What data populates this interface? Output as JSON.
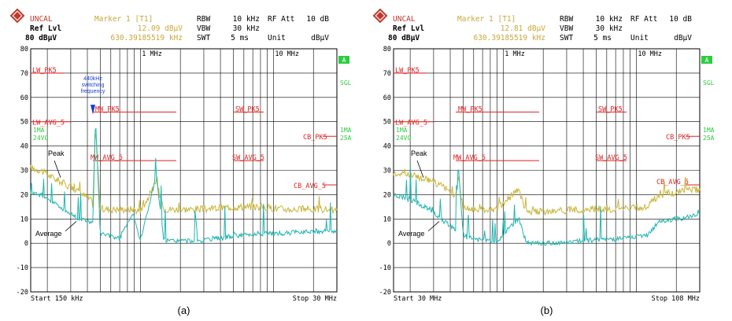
{
  "figure": {
    "panels": [
      {
        "id": "a",
        "caption": "(a)",
        "header": {
          "uncal": "UNCAL",
          "marker_title": "Marker 1 [T1]",
          "marker_value": "12.09 dBµV",
          "marker_freq": "630.39185519 kHz",
          "ref_lvl_label": "Ref Lvl",
          "ref_lvl_value": "80 dBµV",
          "rbw_label": "RBW",
          "rbw_value": "10 kHz",
          "vbw_label": "VBW",
          "vbw_value": "30 kHz",
          "swt_label": "SWT",
          "swt_value": "5 ms",
          "rf_att_label": "RF Att",
          "rf_att_value": "10 dB",
          "unit_label": "Unit",
          "unit_value": "dBµV"
        },
        "footer": {
          "start": "Start 150 kHz",
          "stop": "Stop 30 MHz"
        },
        "side_labels": {
          "a_badge": "A",
          "sgl": "SGL",
          "ma1": "1MA",
          "sub": "25A"
        },
        "left_labels": {
          "ma1": "1MA",
          "avg": "24VG"
        },
        "decade_labels": [
          "1 MHz",
          "10 MHz"
        ],
        "annotations": {
          "peak": "Peak",
          "average": "Average",
          "switching": [
            "440kHz",
            "switching",
            "frequency"
          ]
        },
        "limit_labels": [
          "LW_PK5",
          "LW_AVG_5",
          "MW_PK5",
          "MW_AVG_5",
          "SW_PK5",
          "SW_AVG_5",
          "CB_PK5",
          "CB_AVG_5"
        ]
      },
      {
        "id": "b",
        "caption": "(b)",
        "header": {
          "uncal": "UNCAL",
          "marker_title": "Marker 1 [T1]",
          "marker_value": "12.81 dBµV",
          "marker_freq": "630.39185519 kHz",
          "ref_lvl_label": "Ref Lvl",
          "ref_lvl_value": "80 dBµV",
          "rbw_label": "RBW",
          "rbw_value": "10 kHz",
          "vbw_label": "VBW",
          "vbw_value": "30 kHz",
          "swt_label": "SWT",
          "swt_value": "5 ms",
          "rf_att_label": "RF Att",
          "rf_att_value": "10 dB",
          "unit_label": "Unit",
          "unit_value": "dBµV"
        },
        "footer": {
          "start": "Start 30 MHz",
          "stop": "Stop 108 MHz"
        },
        "side_labels": {
          "a_badge": "A",
          "sgl": "SGL",
          "ma1": "1MA",
          "sub": "25A"
        },
        "left_labels": {
          "ma1": "1MA",
          "avg": "24VG"
        },
        "decade_labels": [
          "1 MHz",
          "10 MHz"
        ],
        "annotations": {
          "peak": "Peak",
          "average": "Average"
        },
        "limit_labels": [
          "LW_PK5",
          "LW_AVG_5",
          "MW_PK5",
          "MW_AVG_5",
          "SW_PK5",
          "SW_AVG_5",
          "CB_PK5",
          "CB_AVG_5"
        ]
      }
    ]
  },
  "chart_data": [
    {
      "type": "line",
      "x_scale": "log",
      "x_unit": "MHz",
      "xlim": [
        0.15,
        30
      ],
      "ylim": [
        -20,
        80
      ],
      "y_ticks": [
        80,
        70,
        60,
        50,
        40,
        30,
        20,
        10,
        0,
        -10,
        -20
      ],
      "grid": true,
      "limit_lines": [
        {
          "name": "LW_PK5",
          "y": 70,
          "x": [
            0.15,
            0.3
          ]
        },
        {
          "name": "LW_AVG_5",
          "y": 50,
          "x": [
            0.15,
            0.3
          ]
        },
        {
          "name": "MW_PK5",
          "y": 54,
          "x": [
            0.52,
            1.73
          ]
        },
        {
          "name": "MW_AVG_5",
          "y": 34,
          "x": [
            0.52,
            1.73
          ]
        },
        {
          "name": "SW_PK5",
          "y": 54,
          "x": [
            5.9,
            6.2
          ]
        },
        {
          "name": "SW_AVG_5",
          "y": 34,
          "x": [
            5.9,
            6.2
          ]
        },
        {
          "name": "CB_PK5",
          "y": 44,
          "x": [
            26,
            28
          ]
        },
        {
          "name": "CB_AVG_5",
          "y": 24,
          "x": [
            26,
            28
          ]
        }
      ],
      "series": [
        {
          "color": "#c9b53a",
          "x": [
            0.15,
            0.18,
            0.22,
            0.28,
            0.35,
            0.42,
            0.44,
            0.46,
            0.5,
            0.7,
            0.88,
            1.0,
            1.32,
            1.5,
            2.0,
            3.0,
            5.0,
            8.0,
            12.0,
            18.0,
            25.0,
            30.0
          ],
          "values": [
            31,
            30,
            27,
            24,
            21,
            18,
            16,
            48,
            14,
            14,
            14,
            13,
            25,
            14,
            14,
            14,
            15,
            15,
            14,
            14,
            14,
            13
          ]
        },
        {
          "color": "#1fb5b0",
          "x": [
            0.15,
            0.18,
            0.22,
            0.28,
            0.35,
            0.42,
            0.44,
            0.46,
            0.5,
            0.7,
            0.88,
            1.0,
            1.32,
            1.5,
            2.0,
            3.0,
            5.0,
            8.0,
            12.0,
            18.0,
            25.0,
            30.0
          ],
          "values": [
            21,
            20,
            17,
            13,
            10,
            9,
            8,
            52,
            4,
            2,
            13,
            1,
            28,
            1,
            1,
            1,
            3,
            4,
            4,
            5,
            5,
            5
          ]
        }
      ]
    },
    {
      "type": "line",
      "x_scale": "log",
      "x_unit": "MHz",
      "xlim": [
        30,
        108
      ],
      "ylim": [
        -20,
        80
      ],
      "y_ticks": [
        80,
        70,
        60,
        50,
        40,
        30,
        20,
        10,
        0,
        -10,
        -20
      ],
      "grid": true,
      "limit_lines": [
        {
          "name": "LW_PK5",
          "y": 70
        },
        {
          "name": "LW_AVG_5",
          "y": 50
        },
        {
          "name": "MW_PK5",
          "y": 54
        },
        {
          "name": "MW_AVG_5",
          "y": 34
        },
        {
          "name": "SW_PK5",
          "y": 54
        },
        {
          "name": "SW_AVG_5",
          "y": 34
        },
        {
          "name": "CB_PK5",
          "y": 44
        },
        {
          "name": "CB_AVG_5",
          "y": 24
        }
      ],
      "series": [
        {
          "color": "#c9b53a",
          "x": [
            0.15,
            0.2,
            0.28,
            0.36,
            0.44,
            0.46,
            0.5,
            0.7,
            0.9,
            1.3,
            1.5,
            2.0,
            4.0,
            8.0,
            12.0,
            15.0,
            20.0,
            25.0,
            30.0
          ],
          "values": [
            29,
            28,
            26,
            23,
            19,
            28,
            14,
            14,
            14,
            22,
            13,
            13,
            14,
            14,
            15,
            20,
            21,
            22,
            22
          ]
        },
        {
          "color": "#1fb5b0",
          "x": [
            0.15,
            0.2,
            0.28,
            0.36,
            0.44,
            0.46,
            0.5,
            0.7,
            0.9,
            1.3,
            1.5,
            2.0,
            4.0,
            8.0,
            12.0,
            15.0,
            20.0,
            25.0,
            30.0
          ],
          "values": [
            20,
            18,
            14,
            9,
            6,
            33,
            3,
            1,
            1,
            10,
            0,
            0,
            1,
            2,
            3,
            9,
            10,
            11,
            12
          ]
        }
      ]
    }
  ]
}
